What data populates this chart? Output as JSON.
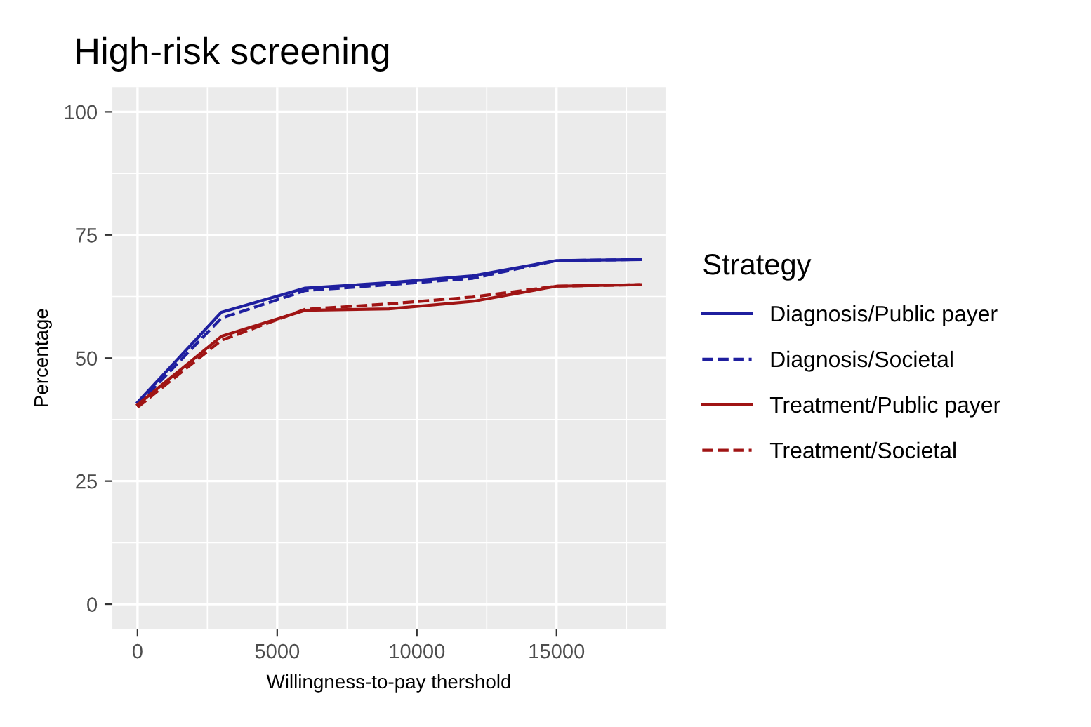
{
  "chart_data": {
    "type": "line",
    "title": "High-risk screening",
    "xlabel": "Willingness-to-pay thershold",
    "ylabel": "Percentage",
    "legend_title": "Strategy",
    "x": [
      0,
      3000,
      6000,
      9000,
      12000,
      15000,
      18000
    ],
    "series": [
      {
        "name": "Diagnosis/Public payer",
        "color": "#1f1f9f",
        "line_style": "solid",
        "values": [
          41,
          59.3,
          64.2,
          65.3,
          66.7,
          69.8,
          70
        ]
      },
      {
        "name": "Diagnosis/Societal",
        "color": "#1f1f9f",
        "line_style": "dashed",
        "values": [
          40.5,
          58.1,
          63.7,
          64.9,
          66.2,
          69.8,
          70
        ]
      },
      {
        "name": "Treatment/Public payer",
        "color": "#a01414",
        "line_style": "solid",
        "values": [
          40.5,
          54.4,
          59.7,
          60,
          61.5,
          64.6,
          64.9
        ]
      },
      {
        "name": "Treatment/Societal",
        "color": "#a01414",
        "line_style": "dashed",
        "values": [
          40,
          53.6,
          59.9,
          61,
          62.4,
          64.6,
          64.9
        ]
      }
    ],
    "xlim": [
      -900,
      18900
    ],
    "ylim": [
      -5,
      105
    ],
    "xticks": [
      0,
      5000,
      10000,
      15000
    ],
    "yticks": [
      0,
      25,
      50,
      75,
      100
    ],
    "grid": true,
    "legend": "right"
  }
}
